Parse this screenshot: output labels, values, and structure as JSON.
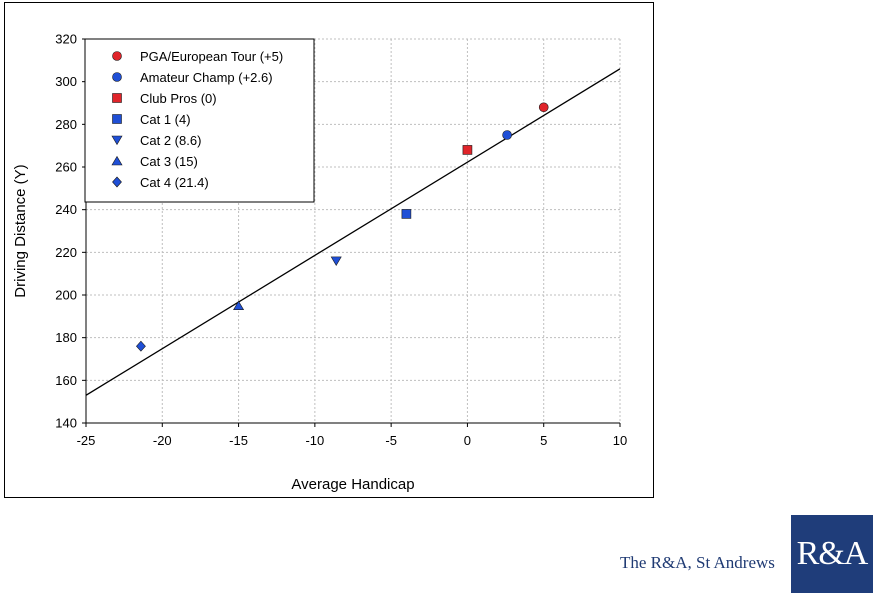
{
  "footer": {
    "text": "The R&A, St Andrews",
    "logo_text": "R&A"
  },
  "colors": {
    "red": "#e0242a",
    "blue": "#1f4fd6",
    "grid": "#bfbfbf",
    "logo_bg": "#1f3d7a"
  },
  "chart_data": {
    "type": "scatter",
    "xlabel": "Average Handicap",
    "ylabel": "Driving Distance (Y)",
    "xlim": [
      -25,
      10
    ],
    "ylim": [
      140,
      320
    ],
    "xticks": [
      -25,
      -20,
      -15,
      -10,
      -5,
      0,
      5,
      10
    ],
    "yticks": [
      140,
      160,
      180,
      200,
      220,
      240,
      260,
      280,
      300,
      320
    ],
    "grid": true,
    "legend_position": "top-left",
    "series": [
      {
        "name": "PGA/European Tour (+5)",
        "marker": "circle",
        "color": "#e0242a",
        "x": [
          5
        ],
        "y": [
          288
        ]
      },
      {
        "name": "Amateur Champ (+2.6)",
        "marker": "circle",
        "color": "#1f4fd6",
        "x": [
          2.6
        ],
        "y": [
          275
        ]
      },
      {
        "name": "Club Pros (0)",
        "marker": "square",
        "color": "#e0242a",
        "x": [
          0
        ],
        "y": [
          268
        ]
      },
      {
        "name": "Cat 1 (4)",
        "marker": "square",
        "color": "#1f4fd6",
        "x": [
          -4
        ],
        "y": [
          238
        ]
      },
      {
        "name": "Cat 2 (8.6)",
        "marker": "triangle-down",
        "color": "#1f4fd6",
        "x": [
          -8.6
        ],
        "y": [
          216
        ]
      },
      {
        "name": "Cat 3 (15)",
        "marker": "triangle-up",
        "color": "#1f4fd6",
        "x": [
          -15
        ],
        "y": [
          195
        ]
      },
      {
        "name": "Cat 4 (21.4)",
        "marker": "diamond",
        "color": "#1f4fd6",
        "x": [
          -21.4
        ],
        "y": [
          176
        ]
      }
    ],
    "trendline": {
      "x": [
        -25,
        10
      ],
      "y": [
        153,
        306
      ]
    }
  }
}
